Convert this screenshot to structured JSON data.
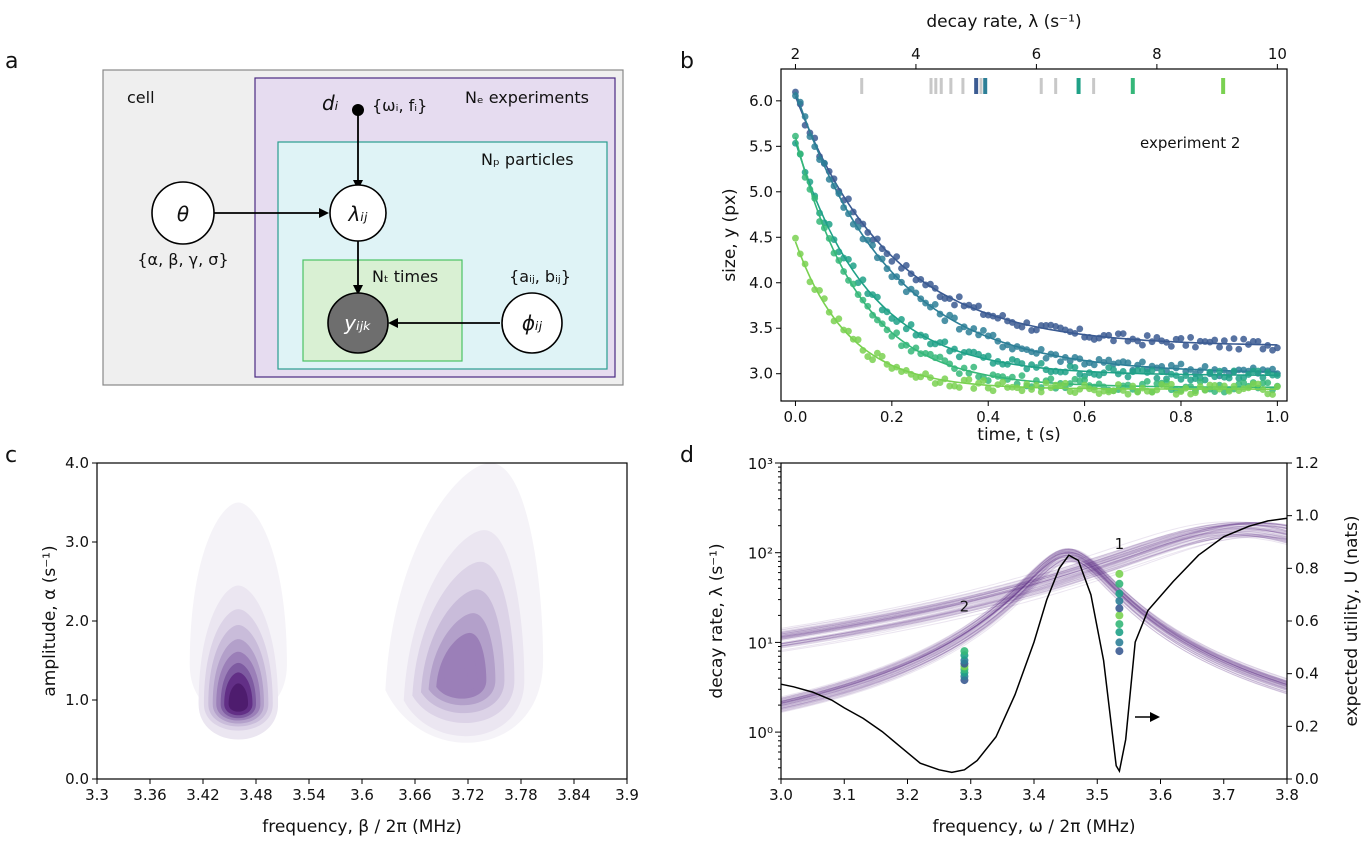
{
  "panels": {
    "a": {
      "letter": "a",
      "cell_label": "cell",
      "experiments_label": "Nₑ experiments",
      "particles_label": "Nₚ particles",
      "times_label": "Nₜ times",
      "theta": "θ",
      "theta_params": "{α, β, γ, σ}",
      "design": "dᵢ",
      "design_params": "{ωᵢ, fᵢ}",
      "lambda": "λᵢⱼ",
      "phi": "ϕᵢⱼ",
      "phi_params": "{aᵢⱼ, bᵢⱼ}",
      "y": "yᵢⱼₖ"
    },
    "b": {
      "letter": "b"
    },
    "c": {
      "letter": "c"
    },
    "d": {
      "letter": "d"
    }
  },
  "colors": {
    "purple_dark": "#3f1f6e",
    "purple_fill": "#e6dcf0",
    "teal": "#2a9d8f",
    "teal_fill": "#dff3f6",
    "green": "#4cc264",
    "green_fill": "#d9f0d3",
    "grey_fill": "#efefef",
    "node_grey": "#6e6e6e"
  },
  "chart_data": [
    {
      "panel": "b",
      "type": "scatter",
      "annotation": "experiment 2",
      "xlabel": "time, t (s)",
      "ylabel": "size, y (px)",
      "top_xlabel": "decay rate, λ (s⁻¹)",
      "xlim": [
        -0.03,
        1.02
      ],
      "ylim": [
        2.7,
        6.35
      ],
      "top_xlim": [
        2,
        10
      ],
      "xticks": [
        "0.0",
        "0.2",
        "0.4",
        "0.6",
        "0.8",
        "1.0"
      ],
      "xtick_values": [
        0,
        0.2,
        0.4,
        0.6,
        0.8,
        1.0
      ],
      "yticks": [
        "3.0",
        "3.5",
        "4.0",
        "4.5",
        "5.0",
        "5.5",
        "6.0"
      ],
      "ytick_values": [
        3.0,
        3.5,
        4.0,
        4.5,
        5.0,
        5.5,
        6.0
      ],
      "top_xticks": [
        "2",
        "4",
        "6",
        "8",
        "10"
      ],
      "top_xtick_values": [
        2,
        4,
        6,
        8,
        10
      ],
      "grey_rug": [
        3.1,
        4.25,
        4.33,
        4.42,
        4.58,
        4.78,
        5.08,
        6.08,
        6.32,
        6.95
      ],
      "series": [
        {
          "color": "#3b5b92",
          "a": 6.05,
          "b": 3.3,
          "rate": 5.1,
          "rug": 5.0
        },
        {
          "color": "#2d7f97",
          "a": 6.1,
          "b": 3.0,
          "rate": 5.1,
          "rug": 5.15
        },
        {
          "color": "#1fa187",
          "a": 5.55,
          "b": 2.98,
          "rate": 6.7,
          "rug": 6.7
        },
        {
          "color": "#35b779",
          "a": 5.6,
          "b": 2.85,
          "rate": 7.6,
          "rug": 7.6
        },
        {
          "color": "#7ad151",
          "a": 4.45,
          "b": 2.83,
          "rate": 9.1,
          "rug": 9.1
        }
      ]
    },
    {
      "panel": "c",
      "type": "heatmap",
      "xlabel": "frequency, β / 2π (MHz)",
      "ylabel": "amplitude, α (s⁻¹)",
      "xlim": [
        3.3,
        3.9
      ],
      "ylim": [
        0.0,
        4.0
      ],
      "xticks": [
        "3.3",
        "3.36",
        "3.42",
        "3.48",
        "3.54",
        "3.6",
        "3.66",
        "3.72",
        "3.78",
        "3.84",
        "3.9"
      ],
      "xtick_values": [
        3.3,
        3.36,
        3.42,
        3.48,
        3.54,
        3.6,
        3.66,
        3.72,
        3.78,
        3.84,
        3.9
      ],
      "yticks": [
        "0.0",
        "1.0",
        "2.0",
        "3.0",
        "4.0"
      ],
      "ytick_values": [
        0,
        1,
        2,
        3,
        4
      ],
      "modes": [
        {
          "beta": 3.46,
          "alpha": 0.9,
          "peak": 1.0
        },
        {
          "beta": 3.71,
          "alpha": 1.2,
          "peak": 0.45
        }
      ]
    },
    {
      "panel": "d",
      "type": "line",
      "xlabel": "frequency, ω / 2π (MHz)",
      "ylabel": "decay rate, λ (s⁻¹)",
      "y2label": "expected utility, U (nats)",
      "xlim": [
        3.0,
        3.8
      ],
      "ylim": [
        0.3,
        1000
      ],
      "y2lim": [
        0.0,
        1.2
      ],
      "yscale": "log",
      "xticks": [
        "3.0",
        "3.1",
        "3.2",
        "3.3",
        "3.4",
        "3.5",
        "3.6",
        "3.7",
        "3.8"
      ],
      "xtick_values": [
        3.0,
        3.1,
        3.2,
        3.3,
        3.4,
        3.5,
        3.6,
        3.7,
        3.8
      ],
      "yticks": [
        "10⁰",
        "10¹",
        "10²",
        "10³"
      ],
      "ytick_values": [
        1,
        10,
        100,
        1000
      ],
      "y2ticks": [
        "0.0",
        "0.2",
        "0.4",
        "0.6",
        "0.8",
        "1.0",
        "1.2"
      ],
      "y2tick_values": [
        0,
        0.2,
        0.4,
        0.6,
        0.8,
        1.0,
        1.2
      ],
      "point_labels": [
        {
          "text": "2",
          "x": 3.29,
          "y": 22
        },
        {
          "text": "1",
          "x": 3.535,
          "y": 110
        }
      ],
      "design_points": [
        {
          "x": 3.29,
          "y": [
            3.8,
            4.2,
            4.6,
            5.0,
            5.4,
            5.8,
            6.3,
            7.2,
            8.0
          ]
        },
        {
          "x": 3.535,
          "y": [
            8.0,
            10,
            13,
            16,
            20,
            24,
            29,
            35,
            45,
            58
          ]
        }
      ],
      "utility": [
        [
          3.0,
          0.36
        ],
        [
          3.02,
          0.35
        ],
        [
          3.05,
          0.33
        ],
        [
          3.08,
          0.3
        ],
        [
          3.1,
          0.27
        ],
        [
          3.13,
          0.23
        ],
        [
          3.16,
          0.18
        ],
        [
          3.19,
          0.12
        ],
        [
          3.22,
          0.06
        ],
        [
          3.25,
          0.035
        ],
        [
          3.27,
          0.025
        ],
        [
          3.29,
          0.035
        ],
        [
          3.31,
          0.07
        ],
        [
          3.34,
          0.16
        ],
        [
          3.37,
          0.32
        ],
        [
          3.4,
          0.52
        ],
        [
          3.42,
          0.68
        ],
        [
          3.44,
          0.8
        ],
        [
          3.455,
          0.85
        ],
        [
          3.47,
          0.83
        ],
        [
          3.49,
          0.7
        ],
        [
          3.51,
          0.45
        ],
        [
          3.52,
          0.25
        ],
        [
          3.53,
          0.05
        ],
        [
          3.535,
          0.03
        ],
        [
          3.545,
          0.15
        ],
        [
          3.56,
          0.52
        ],
        [
          3.58,
          0.64
        ],
        [
          3.62,
          0.75
        ],
        [
          3.66,
          0.85
        ],
        [
          3.7,
          0.92
        ],
        [
          3.74,
          0.96
        ],
        [
          3.77,
          0.98
        ],
        [
          3.8,
          0.99
        ]
      ]
    }
  ]
}
